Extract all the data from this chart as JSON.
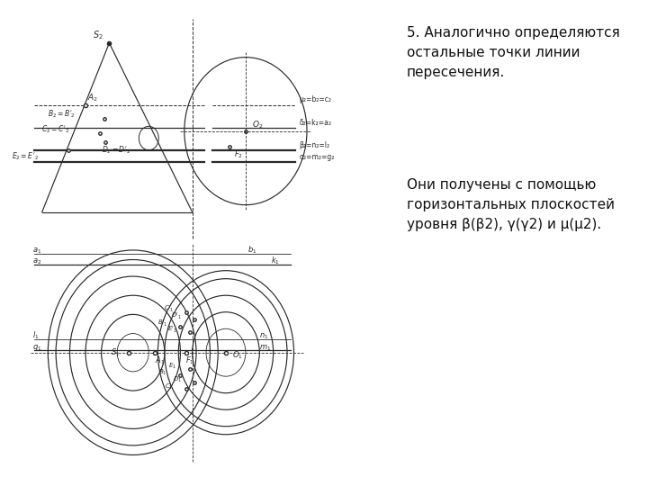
{
  "bg_color": "#d8e8f0",
  "line_color": "#2a2a2a",
  "text_color": "#111111",
  "title_text": "5. Аналогично определяются\nостальные точки линии\nпересечения.",
  "body_text": "Они получены с помощью\nгоризонтальных плоскостей\nуровня β(β2), γ(γ2) и μ(μ2).",
  "line_labels_right": [
    "μ₂=b₂=c₂",
    "δ₂=k₂=a₂",
    "β₂=n₂=l₂",
    "α₂=m₂=g₂"
  ],
  "font_size_main": 11,
  "font_size_label": 7
}
